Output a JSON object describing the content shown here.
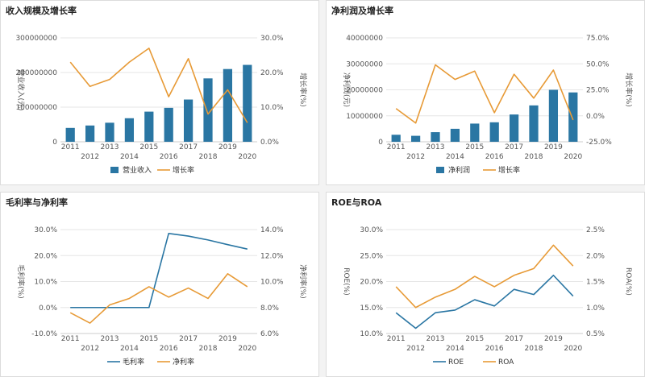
{
  "chart_data": [
    {
      "type": "bar+line",
      "title": "收入规模及增长率",
      "categories": [
        "2011",
        "2012",
        "2013",
        "2014",
        "2015",
        "2016",
        "2017",
        "2018",
        "2019",
        "2020"
      ],
      "series": [
        {
          "name": "营业收入",
          "kind": "bar",
          "axis": "left",
          "color": "#2a76a3",
          "values": [
            40000000,
            47000000,
            55000000,
            68000000,
            87000000,
            98000000,
            122000000,
            183000000,
            210000000,
            222000000
          ]
        },
        {
          "name": "增长率",
          "kind": "line",
          "axis": "right",
          "color": "#e79a36",
          "values": [
            0.23,
            0.16,
            0.18,
            0.23,
            0.27,
            0.13,
            0.24,
            0.08,
            0.15,
            0.055
          ]
        }
      ],
      "ylabel_left": "营业收入(元)",
      "ylabel_right": "增长率(%)",
      "ylim_left": [
        0,
        300000000
      ],
      "yticks_left": [
        "0",
        "100000000",
        "200000000",
        "300000000"
      ],
      "ylim_right": [
        0,
        0.3
      ],
      "yticks_right": [
        "0.0%",
        "10.0%",
        "20.0%",
        "30.0%"
      ],
      "grid": true,
      "legend": "bottom-center"
    },
    {
      "type": "bar+line",
      "title": "净利润及增长率",
      "categories": [
        "2011",
        "2012",
        "2013",
        "2014",
        "2015",
        "2016",
        "2017",
        "2018",
        "2019",
        "2020"
      ],
      "series": [
        {
          "name": "净利润",
          "kind": "bar",
          "axis": "left",
          "color": "#2a76a3",
          "values": [
            2700000,
            2300000,
            3700000,
            5000000,
            7000000,
            7500000,
            10500000,
            14000000,
            20000000,
            19000000
          ]
        },
        {
          "name": "增长率",
          "kind": "line",
          "axis": "right",
          "color": "#e79a36",
          "values": [
            0.07,
            -0.07,
            0.49,
            0.35,
            0.43,
            0.03,
            0.4,
            0.17,
            0.44,
            -0.04
          ]
        }
      ],
      "ylabel_left": "净利润(元)",
      "ylabel_right": "增长率(%)",
      "ylim_left": [
        0,
        40000000
      ],
      "yticks_left": [
        "0",
        "10000000",
        "20000000",
        "30000000",
        "40000000"
      ],
      "ylim_right": [
        -0.25,
        0.75
      ],
      "yticks_right": [
        "-25.0%",
        "0.0%",
        "25.0%",
        "50.0%",
        "75.0%"
      ],
      "grid": true,
      "legend": "bottom-center"
    },
    {
      "type": "line",
      "title": "毛利率与净利率",
      "categories": [
        "2011",
        "2012",
        "2013",
        "2014",
        "2015",
        "2016",
        "2017",
        "2018",
        "2019",
        "2020"
      ],
      "series": [
        {
          "name": "毛利率",
          "kind": "line",
          "axis": "left",
          "color": "#2a76a3",
          "values": [
            0,
            0,
            0,
            0,
            0,
            0.285,
            0.275,
            0.26,
            0.242,
            0.225
          ]
        },
        {
          "name": "净利率",
          "kind": "line",
          "axis": "right",
          "color": "#e79a36",
          "values": [
            0.076,
            0.068,
            0.082,
            0.087,
            0.096,
            0.088,
            0.095,
            0.087,
            0.106,
            0.096
          ]
        }
      ],
      "ylabel_left": "毛利率(%)",
      "ylabel_right": "净利率(%)",
      "ylim_left": [
        -0.1,
        0.3
      ],
      "yticks_left": [
        "-10.0%",
        "0.0%",
        "10.0%",
        "20.0%",
        "30.0%"
      ],
      "ylim_right": [
        0.06,
        0.14
      ],
      "yticks_right": [
        "6.0%",
        "8.0%",
        "10.0%",
        "12.0%",
        "14.0%"
      ],
      "grid": true,
      "legend": "bottom-center"
    },
    {
      "type": "line",
      "title": "ROE与ROA",
      "categories": [
        "2011",
        "2012",
        "2013",
        "2014",
        "2015",
        "2016",
        "2017",
        "2018",
        "2019",
        "2020"
      ],
      "series": [
        {
          "name": "ROE",
          "kind": "line",
          "axis": "left",
          "color": "#2a76a3",
          "values": [
            0.14,
            0.11,
            0.14,
            0.145,
            0.165,
            0.153,
            0.185,
            0.175,
            0.212,
            0.172
          ]
        },
        {
          "name": "ROA",
          "kind": "line",
          "axis": "right",
          "color": "#e79a36",
          "values": [
            0.014,
            0.01,
            0.012,
            0.0135,
            0.016,
            0.014,
            0.0162,
            0.0175,
            0.022,
            0.018
          ]
        }
      ],
      "ylabel_left": "ROE(%)",
      "ylabel_right": "ROA(%)",
      "ylim_left": [
        0.1,
        0.3
      ],
      "yticks_left": [
        "10.0%",
        "15.0%",
        "20.0%",
        "25.0%",
        "30.0%"
      ],
      "ylim_right": [
        0.005,
        0.025
      ],
      "yticks_right": [
        "0.5%",
        "1.0%",
        "1.5%",
        "2.0%",
        "2.5%"
      ],
      "grid": true,
      "legend": "bottom-center"
    }
  ]
}
